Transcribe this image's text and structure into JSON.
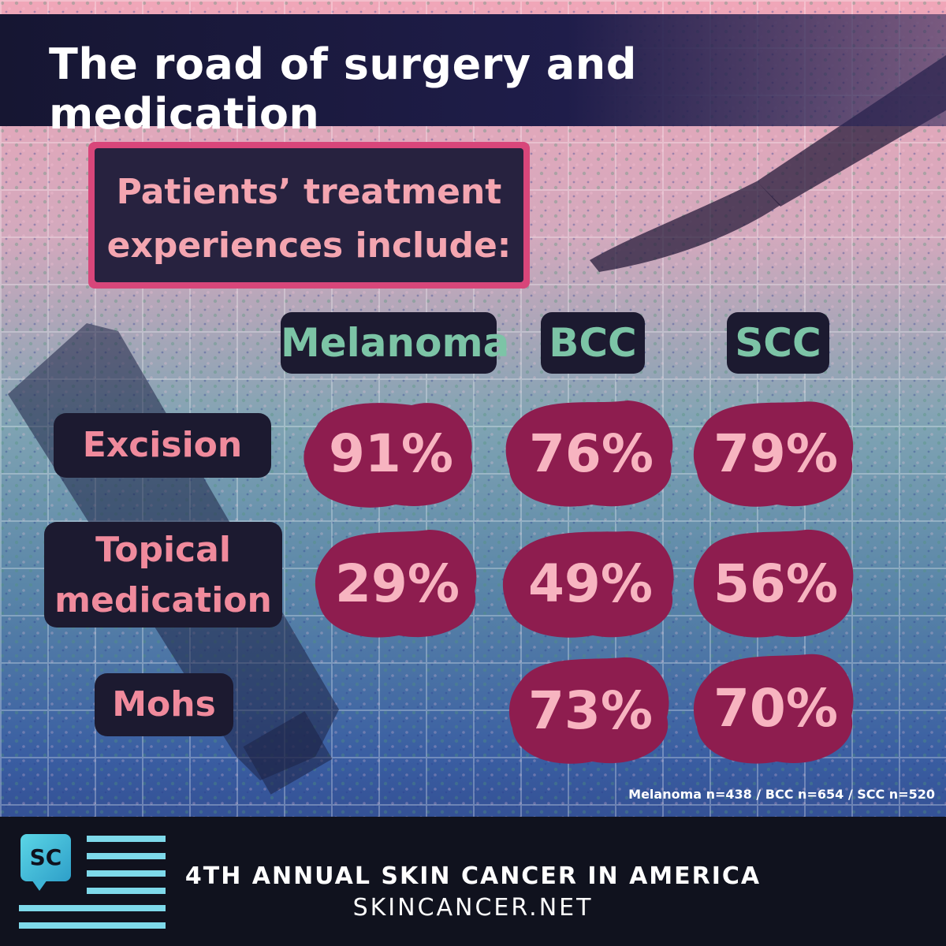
{
  "title": "The road of surgery and medication",
  "intro": {
    "line1": "Patients’ treatment",
    "line2": "experiences include:"
  },
  "columns": [
    "Melanoma",
    "BCC",
    "SCC"
  ],
  "rows": [
    {
      "label_lines": [
        "Excision"
      ],
      "values": [
        "91%",
        "76%",
        "79%"
      ]
    },
    {
      "label_lines": [
        "Topical",
        "medication"
      ],
      "values": [
        "29%",
        "49%",
        "56%"
      ]
    },
    {
      "label_lines": [
        "Mohs"
      ],
      "values": [
        "",
        "73%",
        "70%"
      ]
    }
  ],
  "note": "Melanoma n=438 / BCC n=654 / SCC n=520",
  "footer": {
    "logo": "SC",
    "line1": "4TH ANNUAL SKIN CANCER IN AMERICA",
    "line2": "SKINCANCER.NET"
  },
  "colors": {
    "blob": "#8e1d4f",
    "value_text": "#f7b4c0",
    "column_text": "#7cc4a6",
    "row_text": "#f08a9c",
    "accent": "#d8467a"
  },
  "icons": [
    "scalpel-icon",
    "ointment-tube-icon",
    "logo-speech-bubble-icon"
  ]
}
